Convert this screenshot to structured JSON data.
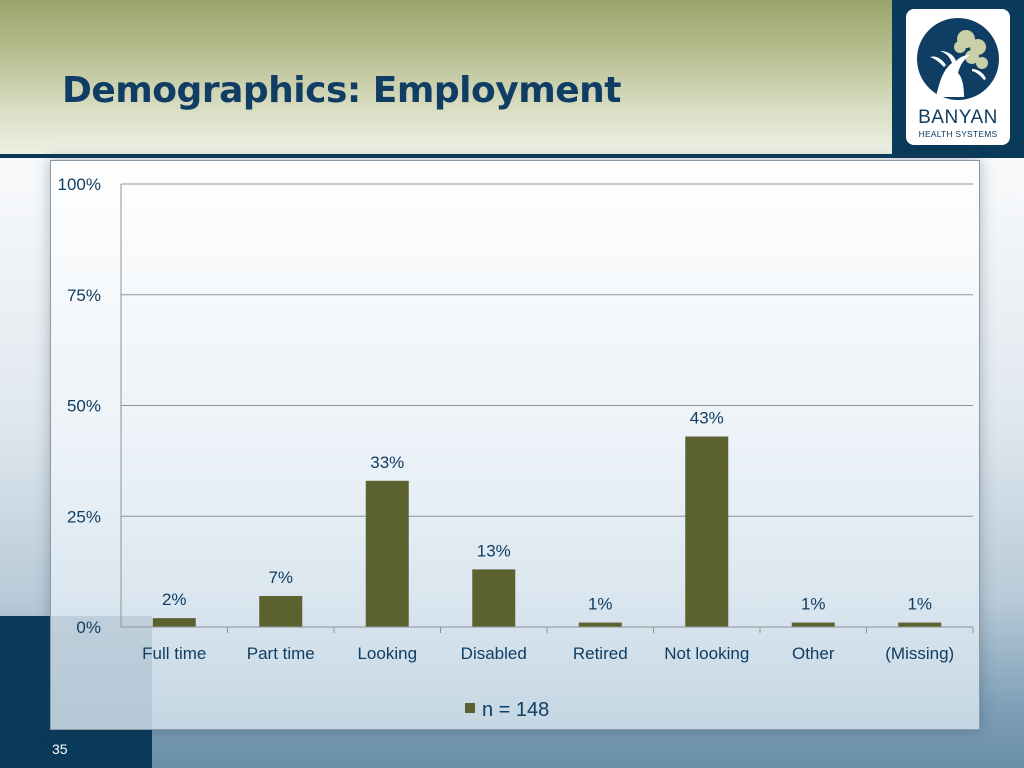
{
  "slide": {
    "title": "Demographics: Employment",
    "number": "35"
  },
  "logo": {
    "name": "BANYAN",
    "subtitle": "HEALTH SYSTEMS",
    "icon": "banyan-tree-icon"
  },
  "colors": {
    "bar": "#5c6130",
    "title": "#0f3d63",
    "accent_dark": "#0a3a5a"
  },
  "chart_data": {
    "type": "bar",
    "categories": [
      "Full time",
      "Part time",
      "Looking",
      "Disabled",
      "Retired",
      "Not looking",
      "Other",
      "(Missing)"
    ],
    "series": [
      {
        "name": "n = 148",
        "values": [
          2,
          7,
          33,
          13,
          1,
          43,
          1,
          1
        ],
        "labels": [
          "2%",
          "7%",
          "33%",
          "13%",
          "1%",
          "43%",
          "1%",
          "1%"
        ]
      }
    ],
    "yticks": [
      "0%",
      "25%",
      "50%",
      "75%",
      "100%"
    ],
    "ylim": [
      0,
      100
    ],
    "grid": true,
    "legend": "bottom",
    "xlabel": "",
    "ylabel": ""
  }
}
